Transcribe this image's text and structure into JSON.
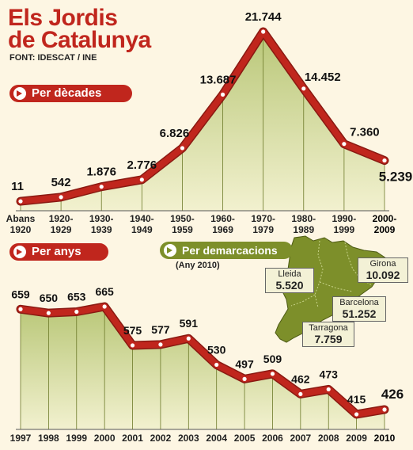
{
  "title_line1": "Els Jordis",
  "title_line2": "de Catalunya",
  "source": "FONT: IDESCAT / INE",
  "pill_decades": "Per dècades",
  "pill_years": "Per anys",
  "pill_regions": "Per demarcacions",
  "regions_note": "(Any 2010)",
  "colors": {
    "red": "#c0261d",
    "green": "#7d8f2a",
    "fill_top": "#b9c778",
    "fill_bottom": "#f2f1cf"
  },
  "regions": [
    {
      "name": "Lleida",
      "value": "5.520"
    },
    {
      "name": "Girona",
      "value": "10.092"
    },
    {
      "name": "Barcelona",
      "value": "51.252"
    },
    {
      "name": "Tarragona",
      "value": "7.759"
    }
  ],
  "chart_data": [
    {
      "type": "area",
      "categories": [
        "Abans 1920",
        "1920-1929",
        "1930-1939",
        "1940-1949",
        "1950-1959",
        "1960-1969",
        "1970-1979",
        "1980-1989",
        "1990-1999",
        "2000-2009"
      ],
      "values": [
        11,
        542,
        1876,
        2776,
        6826,
        13687,
        21744,
        14452,
        7360,
        5239
      ],
      "value_labels": [
        "11",
        "542",
        "1.876",
        "2.776",
        "6.826",
        "13.687",
        "21.744",
        "14.452",
        "7.360",
        "5.239"
      ]
    },
    {
      "type": "area",
      "categories": [
        "1997",
        "1998",
        "1999",
        "2000",
        "2001",
        "2002",
        "2003",
        "2004",
        "2005",
        "2006",
        "2007",
        "2008",
        "2009",
        "2010"
      ],
      "values": [
        659,
        650,
        653,
        665,
        575,
        577,
        591,
        530,
        497,
        509,
        462,
        473,
        415,
        426
      ],
      "value_labels": [
        "659",
        "650",
        "653",
        "665",
        "575",
        "577",
        "591",
        "530",
        "497",
        "509",
        "462",
        "473",
        "415",
        "426"
      ]
    }
  ]
}
